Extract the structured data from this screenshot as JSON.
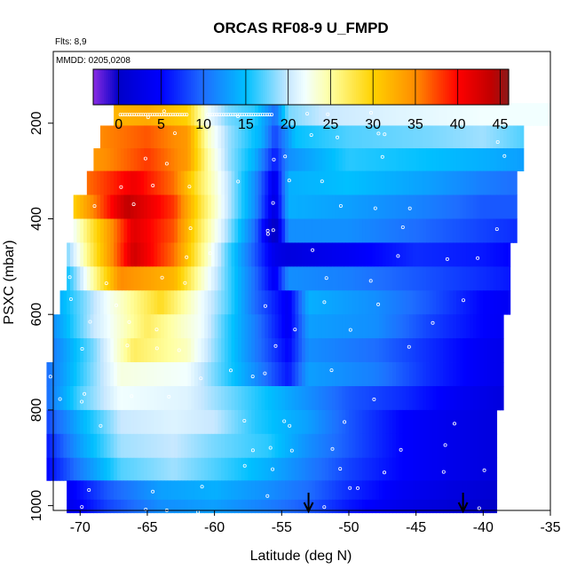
{
  "chart_data": {
    "type": "heatmap",
    "title": "ORCAS RF08-9 U_FMPD",
    "subtitle_flights": "Flts: 8,9",
    "subtitle_dates": "MMDD: 0205,0208",
    "xlabel": "Latitude (deg N)",
    "ylabel": "PSXC (mbar)",
    "xlim": [
      -72,
      -35
    ],
    "ylim": [
      1010,
      50
    ],
    "x_ticks": [
      -70,
      -65,
      -60,
      -55,
      -50,
      -45,
      -40,
      -35
    ],
    "y_ticks": [
      200,
      400,
      600,
      800,
      1000
    ],
    "colorbar": {
      "range": [
        -3,
        46
      ],
      "ticks": [
        0,
        5,
        10,
        15,
        20,
        25,
        30,
        35,
        40,
        45
      ],
      "stops": [
        [
          -3,
          "#8a2be2"
        ],
        [
          0,
          "#0000c8"
        ],
        [
          5,
          "#0000ff"
        ],
        [
          10,
          "#1e6eff"
        ],
        [
          15,
          "#00c0ff"
        ],
        [
          20,
          "#c8e8ff"
        ],
        [
          22,
          "#f2ffff"
        ],
        [
          25,
          "#ffffa0"
        ],
        [
          30,
          "#ffd200"
        ],
        [
          35,
          "#ff8c00"
        ],
        [
          40,
          "#ff0000"
        ],
        [
          44,
          "#c00000"
        ],
        [
          46,
          "#8b1a1a"
        ]
      ]
    },
    "arrows_latitude": [
      -53,
      -41.5
    ],
    "layers": [
      {
        "p": 180,
        "lat_range": [
          -67.5,
          -35
        ],
        "values": [
          [
            -67.5,
            32
          ],
          [
            -65,
            33
          ],
          [
            -62,
            30
          ],
          [
            -60.5,
            22
          ],
          [
            -59,
            18
          ],
          [
            -57,
            16
          ],
          [
            -55.5,
            10
          ],
          [
            -54.5,
            18
          ],
          [
            -52,
            20
          ],
          [
            -47,
            21
          ],
          [
            -40,
            22
          ],
          [
            -35,
            22
          ]
        ]
      },
      {
        "p": 230,
        "lat_range": [
          -68.5,
          -37
        ],
        "values": [
          [
            -68.5,
            35
          ],
          [
            -65,
            37
          ],
          [
            -62,
            34
          ],
          [
            -60.5,
            24
          ],
          [
            -59,
            19
          ],
          [
            -56.5,
            14
          ],
          [
            -55.5,
            8
          ],
          [
            -54,
            15
          ],
          [
            -50,
            17
          ],
          [
            -44,
            18
          ],
          [
            -40,
            19
          ],
          [
            -37,
            17
          ]
        ]
      },
      {
        "p": 275,
        "lat_range": [
          -69,
          -37
        ],
        "values": [
          [
            -69,
            34
          ],
          [
            -65,
            38
          ],
          [
            -62,
            34
          ],
          [
            -60.5,
            25
          ],
          [
            -59,
            19
          ],
          [
            -57,
            14
          ],
          [
            -55.5,
            6
          ],
          [
            -54.5,
            12
          ],
          [
            -50,
            16
          ],
          [
            -44,
            15
          ],
          [
            -40,
            14
          ],
          [
            -37,
            13
          ]
        ]
      },
      {
        "p": 325,
        "lat_range": [
          -69.5,
          -37.5
        ],
        "values": [
          [
            -69.5,
            36
          ],
          [
            -66,
            41
          ],
          [
            -63,
            36
          ],
          [
            -61,
            27
          ],
          [
            -59,
            20
          ],
          [
            -57,
            12
          ],
          [
            -55.5,
            3
          ],
          [
            -54.5,
            14
          ],
          [
            -50,
            15
          ],
          [
            -44,
            13
          ],
          [
            -40,
            11
          ],
          [
            -37.5,
            10
          ]
        ]
      },
      {
        "p": 375,
        "lat_range": [
          -70.5,
          -37.5
        ],
        "values": [
          [
            -70.5,
            30
          ],
          [
            -66.5,
            44
          ],
          [
            -63,
            38
          ],
          [
            -61,
            28
          ],
          [
            -59,
            20
          ],
          [
            -57,
            12
          ],
          [
            -55.5,
            2
          ],
          [
            -54.5,
            14
          ],
          [
            -50,
            13
          ],
          [
            -44,
            11
          ],
          [
            -40,
            9
          ],
          [
            -37.5,
            9
          ]
        ]
      },
      {
        "p": 425,
        "lat_range": [
          -70.5,
          -37.5
        ],
        "values": [
          [
            -70.5,
            22
          ],
          [
            -66,
            42
          ],
          [
            -63,
            37
          ],
          [
            -61,
            27
          ],
          [
            -59,
            19
          ],
          [
            -57,
            10
          ],
          [
            -55.5,
            -1
          ],
          [
            -54.5,
            12
          ],
          [
            -50,
            12
          ],
          [
            -45,
            10
          ],
          [
            -40,
            8
          ],
          [
            -37.5,
            7
          ]
        ]
      },
      {
        "p": 475,
        "lat_range": [
          -71,
          -38
        ],
        "values": [
          [
            -71,
            18
          ],
          [
            -66,
            43
          ],
          [
            -63,
            36
          ],
          [
            -61,
            26
          ],
          [
            -59,
            17
          ],
          [
            -57,
            9
          ],
          [
            -55.5,
            3
          ],
          [
            -54.5,
            2
          ],
          [
            -50,
            4
          ],
          [
            -45,
            7
          ],
          [
            -40,
            6
          ],
          [
            -38,
            5
          ]
        ]
      },
      {
        "p": 525,
        "lat_range": [
          -71,
          -38
        ],
        "values": [
          [
            -71,
            15
          ],
          [
            -67,
            35
          ],
          [
            -63,
            32
          ],
          [
            -61,
            24
          ],
          [
            -59,
            17
          ],
          [
            -57,
            10
          ],
          [
            -55.5,
            4
          ],
          [
            -54.5,
            12
          ],
          [
            -50,
            11
          ],
          [
            -45,
            9
          ],
          [
            -40,
            7
          ],
          [
            -38,
            6
          ]
        ]
      },
      {
        "p": 575,
        "lat_range": [
          -71.5,
          -38
        ],
        "values": [
          [
            -71.5,
            14
          ],
          [
            -68,
            22
          ],
          [
            -64,
            29
          ],
          [
            -61,
            22
          ],
          [
            -59,
            17
          ],
          [
            -57,
            10
          ],
          [
            -54.5,
            4
          ],
          [
            -53,
            14
          ],
          [
            -48,
            12
          ],
          [
            -44,
            9
          ],
          [
            -40,
            5
          ],
          [
            -38,
            4
          ]
        ]
      },
      {
        "p": 625,
        "lat_range": [
          -72,
          -38.5
        ],
        "values": [
          [
            -72,
            12
          ],
          [
            -69,
            20
          ],
          [
            -65,
            27
          ],
          [
            -61,
            22
          ],
          [
            -59,
            16
          ],
          [
            -57,
            11
          ],
          [
            -54.5,
            4
          ],
          [
            -53,
            13
          ],
          [
            -48,
            12
          ],
          [
            -44,
            8
          ],
          [
            -40,
            5
          ],
          [
            -38.5,
            4
          ]
        ]
      },
      {
        "p": 675,
        "lat_range": [
          -72,
          -38.5
        ],
        "values": [
          [
            -72,
            11
          ],
          [
            -69,
            18
          ],
          [
            -66,
            27
          ],
          [
            -62,
            24
          ],
          [
            -59,
            16
          ],
          [
            -57,
            11
          ],
          [
            -54.5,
            5
          ],
          [
            -53,
            12
          ],
          [
            -48,
            10
          ],
          [
            -44,
            7
          ],
          [
            -40,
            4
          ],
          [
            -38.5,
            3
          ]
        ]
      },
      {
        "p": 725,
        "lat_range": [
          -72.5,
          -38.5
        ],
        "values": [
          [
            -72.5,
            10
          ],
          [
            -70,
            16
          ],
          [
            -67,
            23
          ],
          [
            -62,
            22
          ],
          [
            -59,
            16
          ],
          [
            -57,
            12
          ],
          [
            -54.5,
            6
          ],
          [
            -53,
            13
          ],
          [
            -48,
            11
          ],
          [
            -44,
            7
          ],
          [
            -40,
            4
          ],
          [
            -38.5,
            3
          ]
        ]
      },
      {
        "p": 775,
        "lat_range": [
          -72.5,
          -38.5
        ],
        "values": [
          [
            -72.5,
            10
          ],
          [
            -70,
            17
          ],
          [
            -67,
            22
          ],
          [
            -62,
            21
          ],
          [
            -59,
            18
          ],
          [
            -56,
            15
          ],
          [
            -53,
            12
          ],
          [
            -50,
            9
          ],
          [
            -46,
            7
          ],
          [
            -42,
            4
          ],
          [
            -38.5,
            2
          ]
        ]
      },
      {
        "p": 825,
        "lat_range": [
          -72.5,
          -39
        ],
        "values": [
          [
            -72.5,
            8
          ],
          [
            -70,
            14
          ],
          [
            -67,
            20
          ],
          [
            -63,
            21
          ],
          [
            -60,
            20
          ],
          [
            -57,
            16
          ],
          [
            -53,
            13
          ],
          [
            -50,
            9
          ],
          [
            -46,
            5
          ],
          [
            -42,
            3
          ],
          [
            -39,
            2
          ]
        ]
      },
      {
        "p": 875,
        "lat_range": [
          -72.5,
          -39
        ],
        "values": [
          [
            -72.5,
            6
          ],
          [
            -70,
            13
          ],
          [
            -67,
            19
          ],
          [
            -63,
            20
          ],
          [
            -60,
            18
          ],
          [
            -56,
            16
          ],
          [
            -53,
            12
          ],
          [
            -50,
            9
          ],
          [
            -46,
            5
          ],
          [
            -42,
            3
          ],
          [
            -39,
            2
          ]
        ]
      },
      {
        "p": 925,
        "lat_range": [
          -72.5,
          -39
        ],
        "values": [
          [
            -72.5,
            5
          ],
          [
            -70,
            11
          ],
          [
            -67,
            17
          ],
          [
            -63,
            19
          ],
          [
            -60,
            17
          ],
          [
            -56,
            14
          ],
          [
            -53,
            11
          ],
          [
            -50,
            8
          ],
          [
            -46,
            5
          ],
          [
            -42,
            3
          ],
          [
            -39,
            2
          ]
        ]
      },
      {
        "p": 970,
        "lat_range": [
          -71,
          -39
        ],
        "values": [
          [
            -71,
            4
          ],
          [
            -68,
            9
          ],
          [
            -64,
            13
          ],
          [
            -60,
            14
          ],
          [
            -56,
            12
          ],
          [
            -53,
            10
          ],
          [
            -50,
            7
          ],
          [
            -46,
            4
          ],
          [
            -42,
            2
          ],
          [
            -39,
            1
          ]
        ]
      },
      {
        "p": 1005,
        "lat_range": [
          -71,
          -39
        ],
        "values": [
          [
            -71,
            3
          ],
          [
            -68,
            8
          ],
          [
            -64,
            12
          ],
          [
            -60,
            13
          ],
          [
            -56,
            11
          ],
          [
            -53,
            9
          ],
          [
            -50,
            6
          ],
          [
            -46,
            3
          ],
          [
            -42,
            1
          ],
          [
            -39,
            0
          ]
        ]
      }
    ]
  }
}
